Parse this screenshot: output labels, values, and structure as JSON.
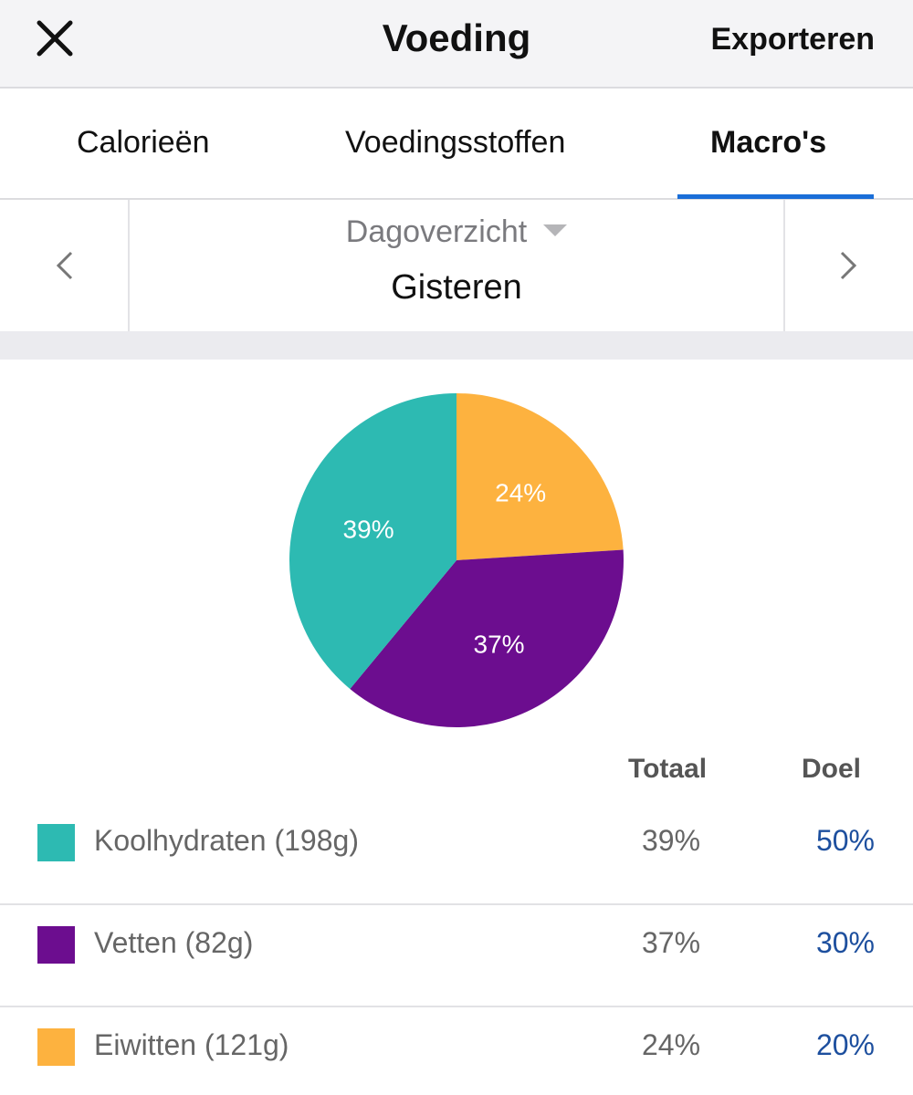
{
  "header": {
    "title": "Voeding",
    "close_icon": "close-icon",
    "export_label": "Exporteren"
  },
  "tabs": [
    {
      "label": "Calorieën",
      "active": false
    },
    {
      "label": "Voedingsstoffen",
      "active": false
    },
    {
      "label": "Macro's",
      "active": true
    }
  ],
  "accent_color": "#1a6ed8",
  "date_nav": {
    "period": "Dagoverzicht",
    "date": "Gisteren",
    "prev_icon": "chevron-left-icon",
    "next_icon": "chevron-right-icon"
  },
  "chart_data": {
    "type": "pie",
    "slices": [
      {
        "label": "Eiwitten",
        "value": 24,
        "display": "24%",
        "color": "#fdb23f"
      },
      {
        "label": "Vetten",
        "value": 37,
        "display": "37%",
        "color": "#6c0d8f"
      },
      {
        "label": "Koolhydraten",
        "value": 39,
        "display": "39%",
        "color": "#2dbab2"
      }
    ]
  },
  "legend": {
    "total_header": "Totaal",
    "goal_header": "Doel",
    "rows": [
      {
        "name": "Koolhydraten (198g)",
        "total": "39%",
        "goal": "50%",
        "color": "#2dbab2"
      },
      {
        "name": "Vetten (82g)",
        "total": "37%",
        "goal": "30%",
        "color": "#6c0d8f"
      },
      {
        "name": "Eiwitten (121g)",
        "total": "24%",
        "goal": "20%",
        "color": "#fdb23f"
      }
    ]
  }
}
